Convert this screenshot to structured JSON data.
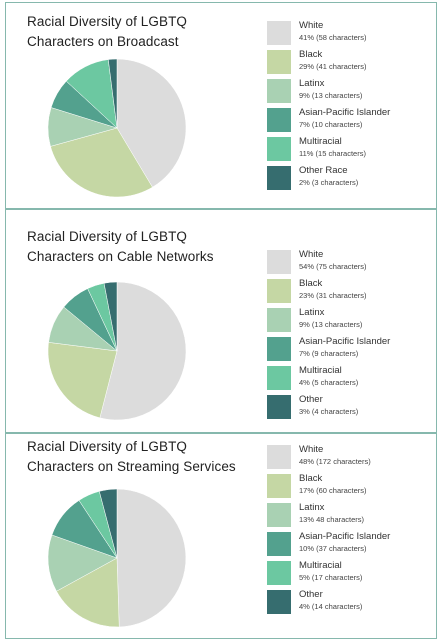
{
  "colors": {
    "White": "#dcdcdc",
    "Black": "#c5d7a4",
    "Latinx": "#a9d1b3",
    "Asian-Pacific Islander": "#53a18e",
    "Multiracial": "#6cc8a1",
    "Other": "#366d6f"
  },
  "chart_data": [
    {
      "type": "pie",
      "title_lines": [
        "Racial Diversity of LGBTQ",
        "Characters on Broadcast"
      ],
      "slices": [
        {
          "label": "White",
          "value": 41,
          "value_text": "41% (58 characters)",
          "color_key": "White"
        },
        {
          "label": "Black",
          "value": 29,
          "value_text": "29% (41 characters)",
          "color_key": "Black"
        },
        {
          "label": "Latinx",
          "value": 9,
          "value_text": "9% (13 characters)",
          "color_key": "Latinx"
        },
        {
          "label": "Asian-Pacific Islander",
          "value": 7,
          "value_text": "7% (10 characters)",
          "color_key": "Asian-Pacific Islander"
        },
        {
          "label": "Multiracial",
          "value": 11,
          "value_text": "11% (15 characters)",
          "color_key": "Multiracial"
        },
        {
          "label": "Other Race",
          "value": 2,
          "value_text": "2% (3 characters)",
          "color_key": "Other"
        }
      ]
    },
    {
      "type": "pie",
      "title_lines": [
        "Racial Diversity of LGBTQ",
        "Characters on Cable Networks"
      ],
      "slices": [
        {
          "label": "White",
          "value": 54,
          "value_text": "54% (75 characters)",
          "color_key": "White"
        },
        {
          "label": "Black",
          "value": 23,
          "value_text": "23% (31 characters)",
          "color_key": "Black"
        },
        {
          "label": "Latinx",
          "value": 9,
          "value_text": "9% (13 characters)",
          "color_key": "Latinx"
        },
        {
          "label": "Asian-Pacific Islander",
          "value": 7,
          "value_text": "7% (9 characters)",
          "color_key": "Asian-Pacific Islander"
        },
        {
          "label": "Multiracial",
          "value": 4,
          "value_text": "4% (5 characters)",
          "color_key": "Multiracial"
        },
        {
          "label": "Other",
          "value": 3,
          "value_text": "3% (4 characters)",
          "color_key": "Other"
        }
      ]
    },
    {
      "type": "pie",
      "title_lines": [
        "Racial Diversity of LGBTQ",
        "Characters on Streaming Services"
      ],
      "slices": [
        {
          "label": "White",
          "value": 48,
          "value_text": "48% (172 characters)",
          "color_key": "White"
        },
        {
          "label": "Black",
          "value": 17,
          "value_text": "17% (60 characters)",
          "color_key": "Black"
        },
        {
          "label": "Latinx",
          "value": 13,
          "value_text": "13% 48 characters)",
          "color_key": "Latinx"
        },
        {
          "label": "Asian-Pacific Islander",
          "value": 10,
          "value_text": "10% (37 characters)",
          "color_key": "Asian-Pacific Islander"
        },
        {
          "label": "Multiracial",
          "value": 5,
          "value_text": "5% (17 characters)",
          "color_key": "Multiracial"
        },
        {
          "label": "Other",
          "value": 4,
          "value_text": "4% (14 characters)",
          "color_key": "Other"
        }
      ]
    }
  ]
}
